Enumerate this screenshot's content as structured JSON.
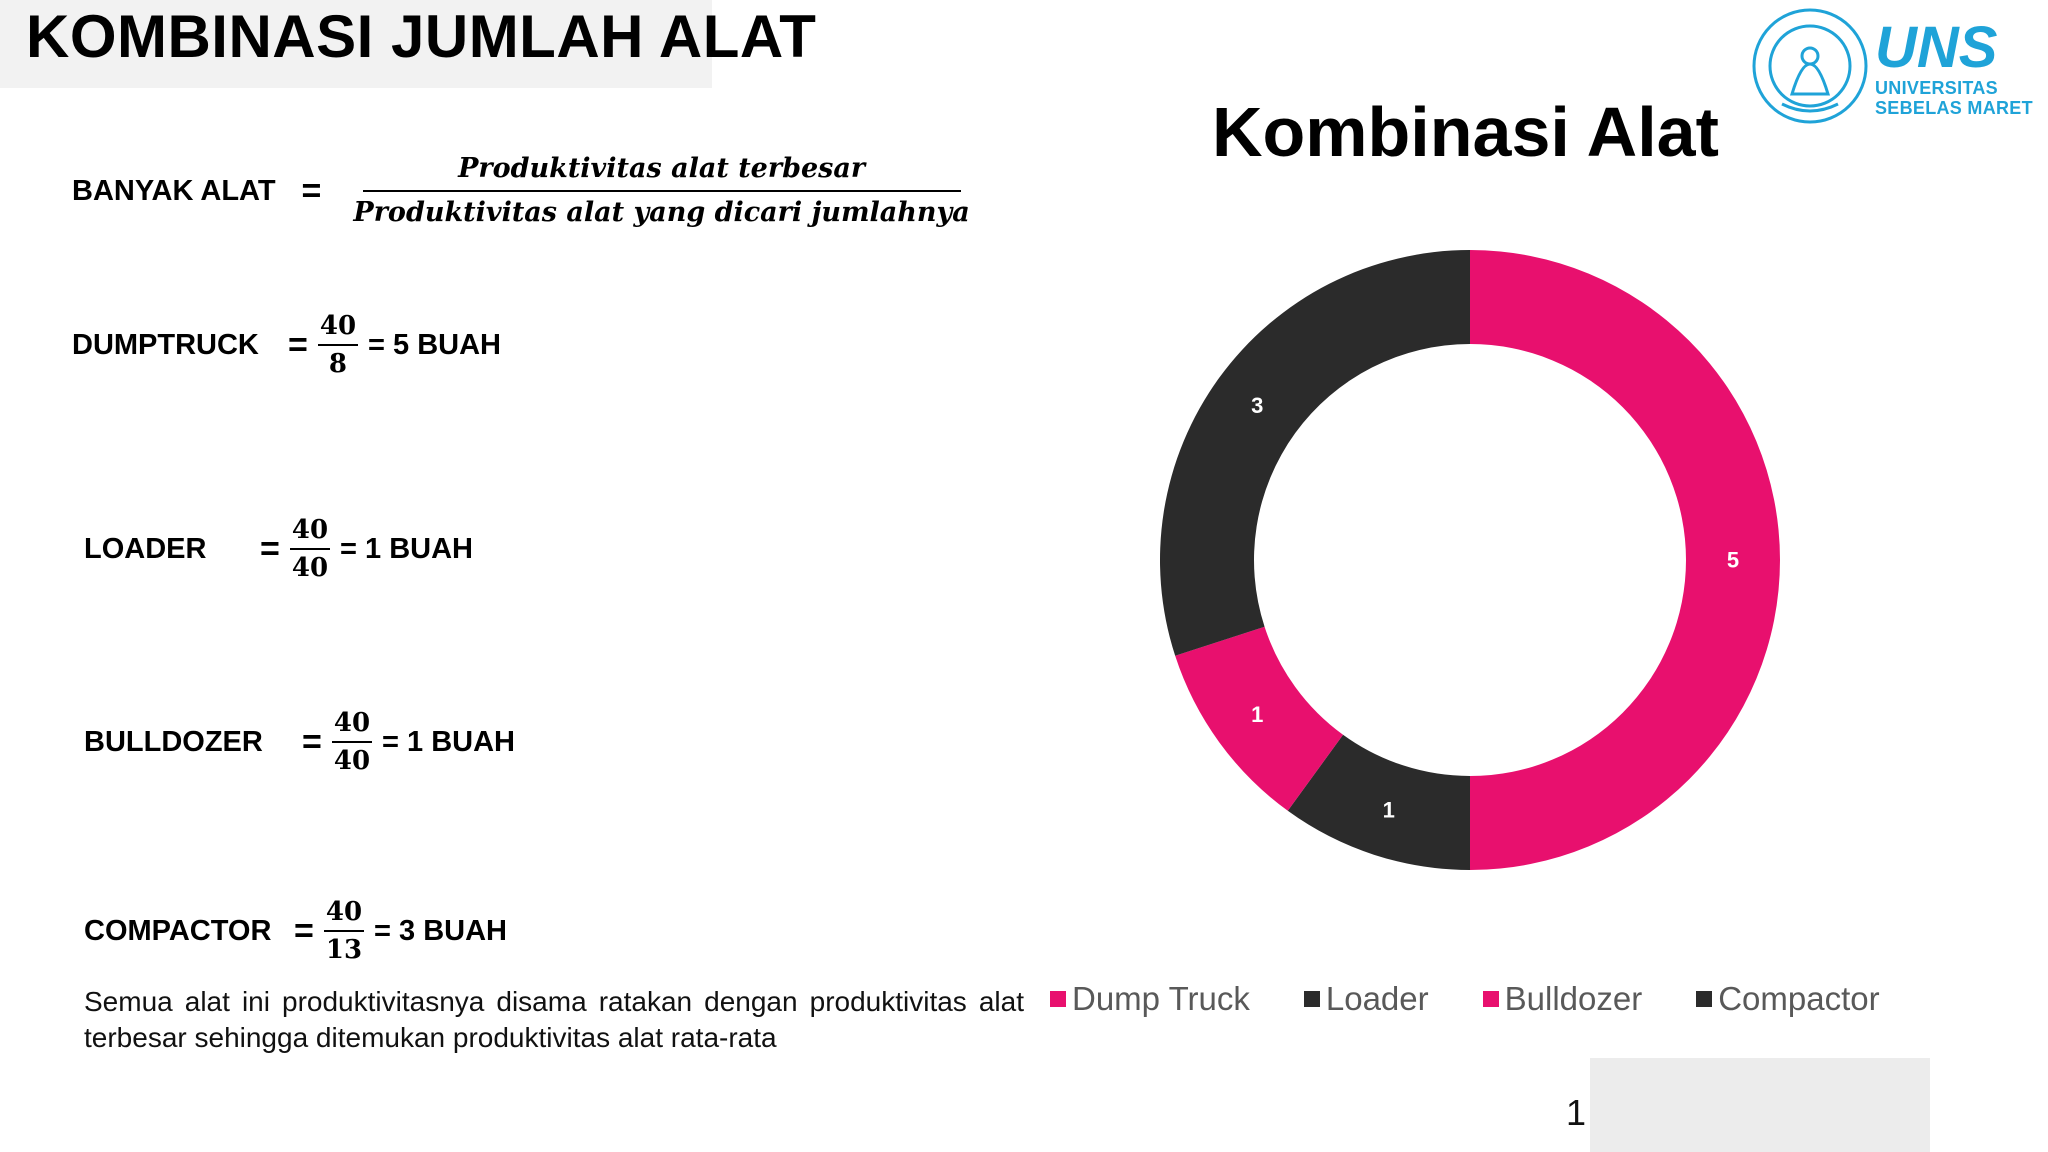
{
  "slide": {
    "title": "KOMBINASI JUMLAH ALAT",
    "page_number": "1"
  },
  "formula_main": {
    "label": "BANYAK ALAT",
    "eq": "=",
    "numerator": "Produktivitas alat terbesar",
    "denominator": "Produktivitas alat yang dicari jumlahnya"
  },
  "rows": [
    {
      "label": "DUMPTRUCK",
      "num": "40",
      "den": "8",
      "result": "= 5 BUAH"
    },
    {
      "label": "LOADER",
      "num": "40",
      "den": "40",
      "result": "= 1 BUAH"
    },
    {
      "label": "BULLDOZER",
      "num": "40",
      "den": "40",
      "result": "= 1 BUAH"
    },
    {
      "label": "COMPACTOR",
      "num": "40",
      "den": "13",
      "result": "= 3 BUAH"
    }
  ],
  "eq_sign": "=",
  "note": "Semua alat ini produktivitasnya disama ratakan dengan produktivitas alat terbesar sehingga ditemukan produktivitas alat rata-rata",
  "logo": {
    "name": "UNS",
    "line1": "UNIVERSITAS",
    "line2": "SEBELAS MARET",
    "color": "#1fa3d8"
  },
  "chart_data": {
    "type": "pie",
    "donut": true,
    "title": "Kombinasi Alat",
    "categories": [
      "Dump Truck",
      "Loader",
      "Bulldozer",
      "Compactor"
    ],
    "values": [
      5,
      1,
      1,
      3
    ],
    "colors": [
      "#e8106e",
      "#2b2b2b",
      "#e8106e",
      "#2b2b2b"
    ],
    "data_labels": [
      "5",
      "1",
      "1",
      "3"
    ],
    "start_angle_deg": 0,
    "direction": "clockwise",
    "legend": "bottom"
  }
}
